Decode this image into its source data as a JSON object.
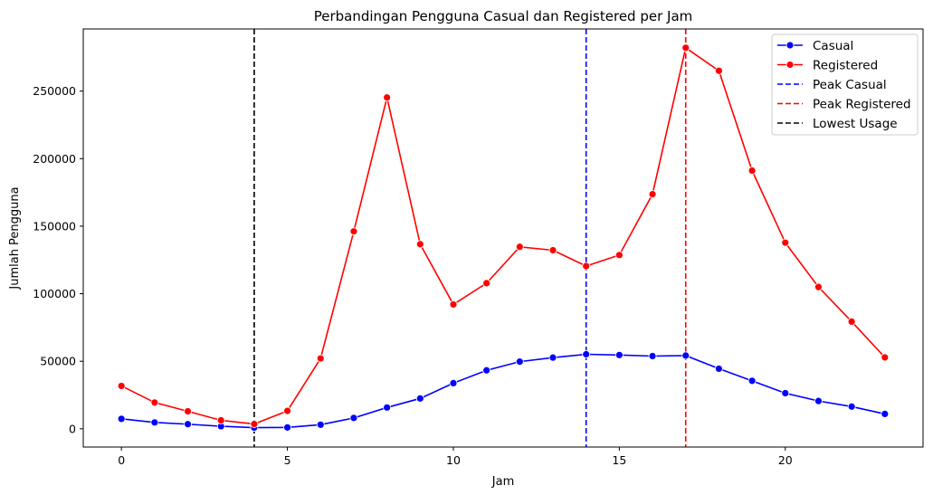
{
  "chart_data": {
    "type": "line",
    "title": "Perbandingan Pengguna Casual dan Registered per Jam",
    "xlabel": "Jam",
    "ylabel": "Jumlah Pengguna",
    "xlim": [
      -1.15,
      24.15
    ],
    "ylim": [
      -13500,
      296000
    ],
    "xticks": [
      0,
      5,
      10,
      15,
      20
    ],
    "yticks": [
      0,
      50000,
      100000,
      150000,
      200000,
      250000
    ],
    "x": [
      0,
      1,
      2,
      3,
      4,
      5,
      6,
      7,
      8,
      9,
      10,
      11,
      12,
      13,
      14,
      15,
      16,
      17,
      18,
      19,
      20,
      21,
      22,
      23
    ],
    "series": [
      {
        "name": "Casual",
        "color": "#0000ff",
        "marker": "circle",
        "values": [
          7375,
          4709,
          3412,
          1893,
          874,
          1012,
          3017,
          8037,
          15761,
          22458,
          33789,
          43286,
          49718,
          52713,
          55166,
          54606,
          53834,
          54220,
          44496,
          35505,
          26378,
          20570,
          16439,
          11013
        ]
      },
      {
        "name": "Registered",
        "color": "#ff0000",
        "marker": "circle",
        "values": [
          31755,
          19455,
          12940,
          6281,
          3554,
          13249,
          52115,
          146134,
          245240,
          136645,
          92060,
          107824,
          134696,
          132206,
          120469,
          128634,
          173707,
          282060,
          265028,
          191145,
          137769,
          104969,
          79345,
          52871
        ]
      }
    ],
    "vlines": [
      {
        "name": "Peak Casual",
        "x": 14,
        "color": "#0000ff",
        "style": "dashed"
      },
      {
        "name": "Peak Registered",
        "x": 17,
        "color": "#ff0000",
        "style": "dashed"
      },
      {
        "name": "Lowest Usage",
        "x": 4,
        "color": "#000000",
        "style": "dashed"
      }
    ],
    "legend": {
      "placement": "top-right",
      "entries": [
        {
          "label": "Casual",
          "color": "#0000ff",
          "line": "solid",
          "marker": true
        },
        {
          "label": "Registered",
          "color": "#ff0000",
          "line": "solid",
          "marker": true
        },
        {
          "label": "Peak Casual",
          "color": "#0000ff",
          "line": "dashed",
          "marker": false
        },
        {
          "label": "Peak Registered",
          "color": "#ff0000",
          "line": "dashed",
          "marker": false
        },
        {
          "label": "Lowest Usage",
          "color": "#000000",
          "line": "dashed",
          "marker": false
        }
      ]
    },
    "grid": false
  }
}
